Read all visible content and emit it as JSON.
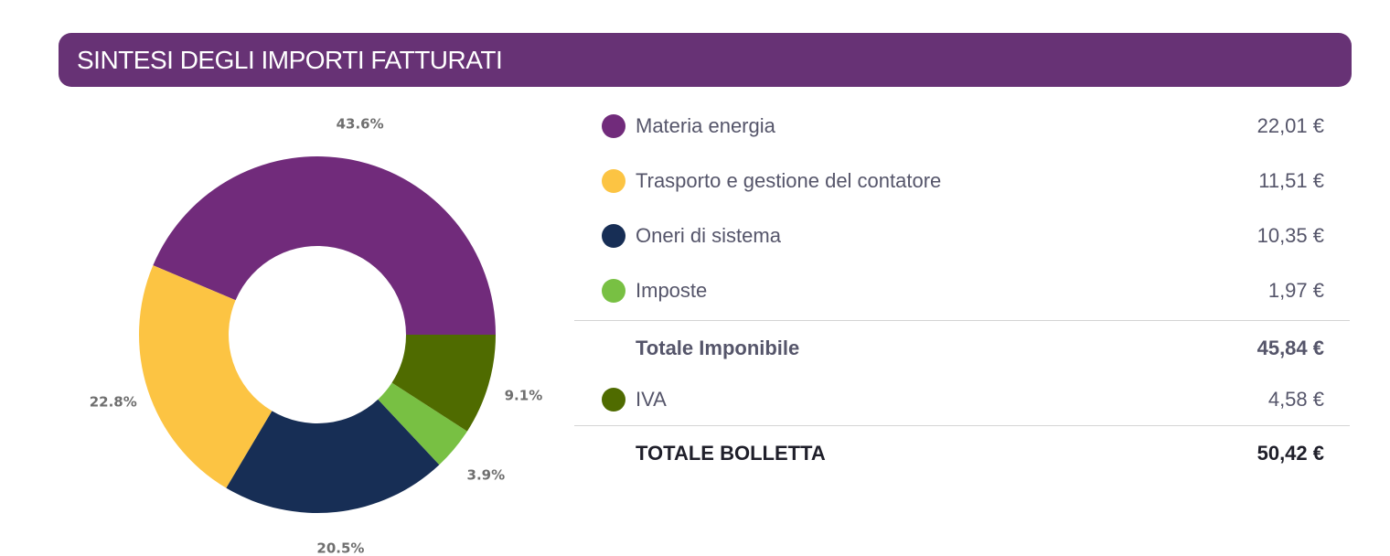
{
  "header": {
    "title": "SINTESI DEGLI IMPORTI FATTURATI"
  },
  "chart_data": {
    "type": "pie",
    "variant": "donut",
    "categories": [
      "Materia energia",
      "Trasporto e gestione del contatore",
      "Oneri di sistema",
      "Imposte",
      "IVA"
    ],
    "values": [
      43.6,
      22.8,
      20.5,
      3.9,
      9.1
    ],
    "labels": [
      "43.6%",
      "22.8%",
      "20.5%",
      "3.9%",
      "9.1%"
    ],
    "colors": [
      "#712b7b",
      "#fcc443",
      "#172e55",
      "#78c043",
      "#4f6b00"
    ],
    "title": ""
  },
  "legend": {
    "items": [
      {
        "label": "Materia energia",
        "value": "22,01 €",
        "color": "#712b7b"
      },
      {
        "label": "Trasporto e gestione del contatore",
        "value": "11,51 €",
        "color": "#fcc443"
      },
      {
        "label": "Oneri di sistema",
        "value": "10,35 €",
        "color": "#172e55"
      },
      {
        "label": "Imposte",
        "value": "1,97 €",
        "color": "#78c043"
      }
    ],
    "totale_imponibile": {
      "label": "Totale Imponibile",
      "value": "45,84 €"
    },
    "iva": {
      "label": "IVA",
      "value": "4,58 €",
      "color": "#4f6b00"
    },
    "totale_bolletta": {
      "label": "TOTALE BOLLETTA",
      "value": "50,42 €"
    }
  }
}
